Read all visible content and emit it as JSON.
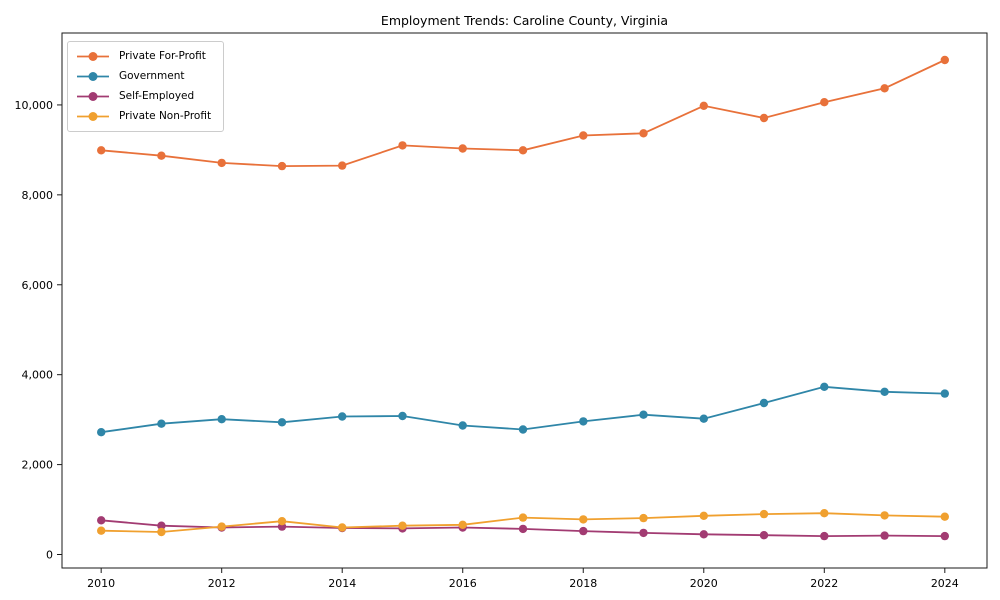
{
  "figure": {
    "title": "Employment Trends: Caroline County, Virginia"
  },
  "chart_data": {
    "type": "line",
    "title": "Employment Trends: Caroline County, Virginia",
    "xlabel": "",
    "ylabel": "",
    "grid": false,
    "legend_position": "upper-left",
    "x": [
      2010,
      2011,
      2012,
      2013,
      2014,
      2015,
      2016,
      2017,
      2018,
      2019,
      2020,
      2021,
      2022,
      2023,
      2024
    ],
    "series": [
      {
        "name": "Private For-Profit",
        "color": "#e8713a",
        "values": [
          8990,
          8870,
          8710,
          8640,
          8650,
          9100,
          9030,
          8990,
          9320,
          9370,
          9980,
          9710,
          10060,
          10370,
          11000
        ]
      },
      {
        "name": "Government",
        "color": "#2f86a8",
        "values": [
          2720,
          2910,
          3010,
          2940,
          3070,
          3080,
          2870,
          2780,
          2960,
          3110,
          3020,
          3370,
          3730,
          3620,
          3580
        ]
      },
      {
        "name": "Self-Employed",
        "color": "#a23b72",
        "values": [
          760,
          640,
          600,
          620,
          590,
          580,
          600,
          570,
          520,
          480,
          450,
          430,
          410,
          420,
          410
        ]
      },
      {
        "name": "Private Non-Profit",
        "color": "#f0a02f",
        "values": [
          530,
          500,
          620,
          740,
          600,
          640,
          660,
          820,
          780,
          810,
          860,
          900,
          920,
          870,
          840
        ]
      }
    ],
    "xticks": [
      {
        "value": 2010,
        "label": "2010"
      },
      {
        "value": 2012,
        "label": "2012"
      },
      {
        "value": 2014,
        "label": "2014"
      },
      {
        "value": 2016,
        "label": "2016"
      },
      {
        "value": 2018,
        "label": "2018"
      },
      {
        "value": 2020,
        "label": "2020"
      },
      {
        "value": 2022,
        "label": "2022"
      },
      {
        "value": 2024,
        "label": "2024"
      }
    ],
    "yticks": [
      {
        "value": 0,
        "label": "0"
      },
      {
        "value": 2000,
        "label": "2,000"
      },
      {
        "value": 4000,
        "label": "4,000"
      },
      {
        "value": 6000,
        "label": "6,000"
      },
      {
        "value": 8000,
        "label": "8,000"
      },
      {
        "value": 10000,
        "label": "10,000"
      }
    ],
    "xlim": [
      2009.35,
      2024.7
    ],
    "ylim": [
      -300,
      11600
    ]
  }
}
